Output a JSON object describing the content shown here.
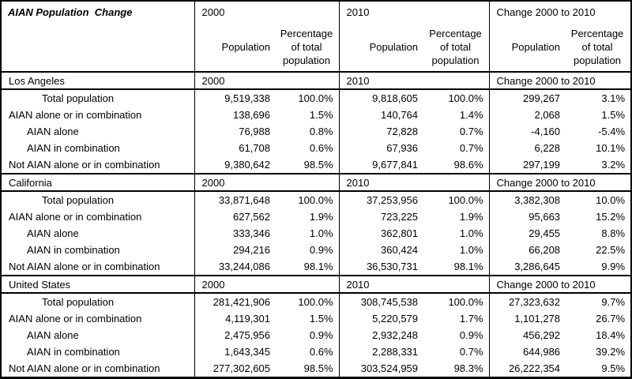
{
  "title": "AIAN Population  Change",
  "header": {
    "groups": [
      "2000",
      "2010",
      "Change 2000 to 2010"
    ],
    "population_label": "Population",
    "percentage_label": "Percentage of total population"
  },
  "sections": [
    {
      "name": "Los Angeles",
      "band": [
        "2000",
        "2010",
        "Change 2000 to 2010"
      ],
      "rows": [
        {
          "label": "Total population",
          "indent": 2,
          "values": [
            "9,519,338",
            "100.0%",
            "9,818,605",
            "100.0%",
            "299,267",
            "3.1%"
          ]
        },
        {
          "label": "AIAN alone or in combination",
          "indent": 0,
          "values": [
            "138,696",
            "1.5%",
            "140,764",
            "1.4%",
            "2,068",
            "1.5%"
          ]
        },
        {
          "label": "AIAN alone",
          "indent": 1,
          "values": [
            "76,988",
            "0.8%",
            "72,828",
            "0.7%",
            "-4,160",
            "-5.4%"
          ]
        },
        {
          "label": "AIAN in combination",
          "indent": 1,
          "values": [
            "61,708",
            "0.6%",
            "67,936",
            "0.7%",
            "6,228",
            "10.1%"
          ]
        },
        {
          "label": "Not AIAN alone or in combination",
          "indent": 0,
          "values": [
            "9,380,642",
            "98.5%",
            "9,677,841",
            "98.6%",
            "297,199",
            "3.2%"
          ]
        }
      ]
    },
    {
      "name": "California",
      "band": [
        "2000",
        "2010",
        "Change 2000 to 2010"
      ],
      "rows": [
        {
          "label": "Total population",
          "indent": 2,
          "values": [
            "33,871,648",
            "100.0%",
            "37,253,956",
            "100.0%",
            "3,382,308",
            "10.0%"
          ]
        },
        {
          "label": "AIAN alone or in combination",
          "indent": 0,
          "values": [
            "627,562",
            "1.9%",
            "723,225",
            "1.9%",
            "95,663",
            "15.2%"
          ]
        },
        {
          "label": "AIAN alone",
          "indent": 1,
          "values": [
            "333,346",
            "1.0%",
            "362,801",
            "1.0%",
            "29,455",
            "8.8%"
          ]
        },
        {
          "label": "AIAN in combination",
          "indent": 1,
          "values": [
            "294,216",
            "0.9%",
            "360,424",
            "1.0%",
            "66,208",
            "22.5%"
          ]
        },
        {
          "label": "Not AIAN alone or in combination",
          "indent": 0,
          "values": [
            "33,244,086",
            "98.1%",
            "36,530,731",
            "98.1%",
            "3,286,645",
            "9.9%"
          ]
        }
      ]
    },
    {
      "name": "United States",
      "band": [
        "2000",
        "2010",
        "Change 2000 to 2010"
      ],
      "rows": [
        {
          "label": "Total population",
          "indent": 2,
          "values": [
            "281,421,906",
            "100.0%",
            "308,745,538",
            "100.0%",
            "27,323,632",
            "9.7%"
          ]
        },
        {
          "label": "AIAN alone or in combination",
          "indent": 0,
          "values": [
            "4,119,301",
            "1.5%",
            "5,220,579",
            "1.7%",
            "1,101,278",
            "26.7%"
          ]
        },
        {
          "label": "AIAN alone",
          "indent": 1,
          "values": [
            "2,475,956",
            "0.9%",
            "2,932,248",
            "0.9%",
            "456,292",
            "18.4%"
          ]
        },
        {
          "label": "AIAN in combination",
          "indent": 1,
          "values": [
            "1,643,345",
            "0.6%",
            "2,288,331",
            "0.7%",
            "644,986",
            "39.2%"
          ]
        },
        {
          "label": "Not AIAN alone or in combination",
          "indent": 0,
          "values": [
            "277,302,605",
            "98.5%",
            "303,524,959",
            "98.3%",
            "26,222,354",
            "9.5%"
          ]
        }
      ]
    }
  ]
}
